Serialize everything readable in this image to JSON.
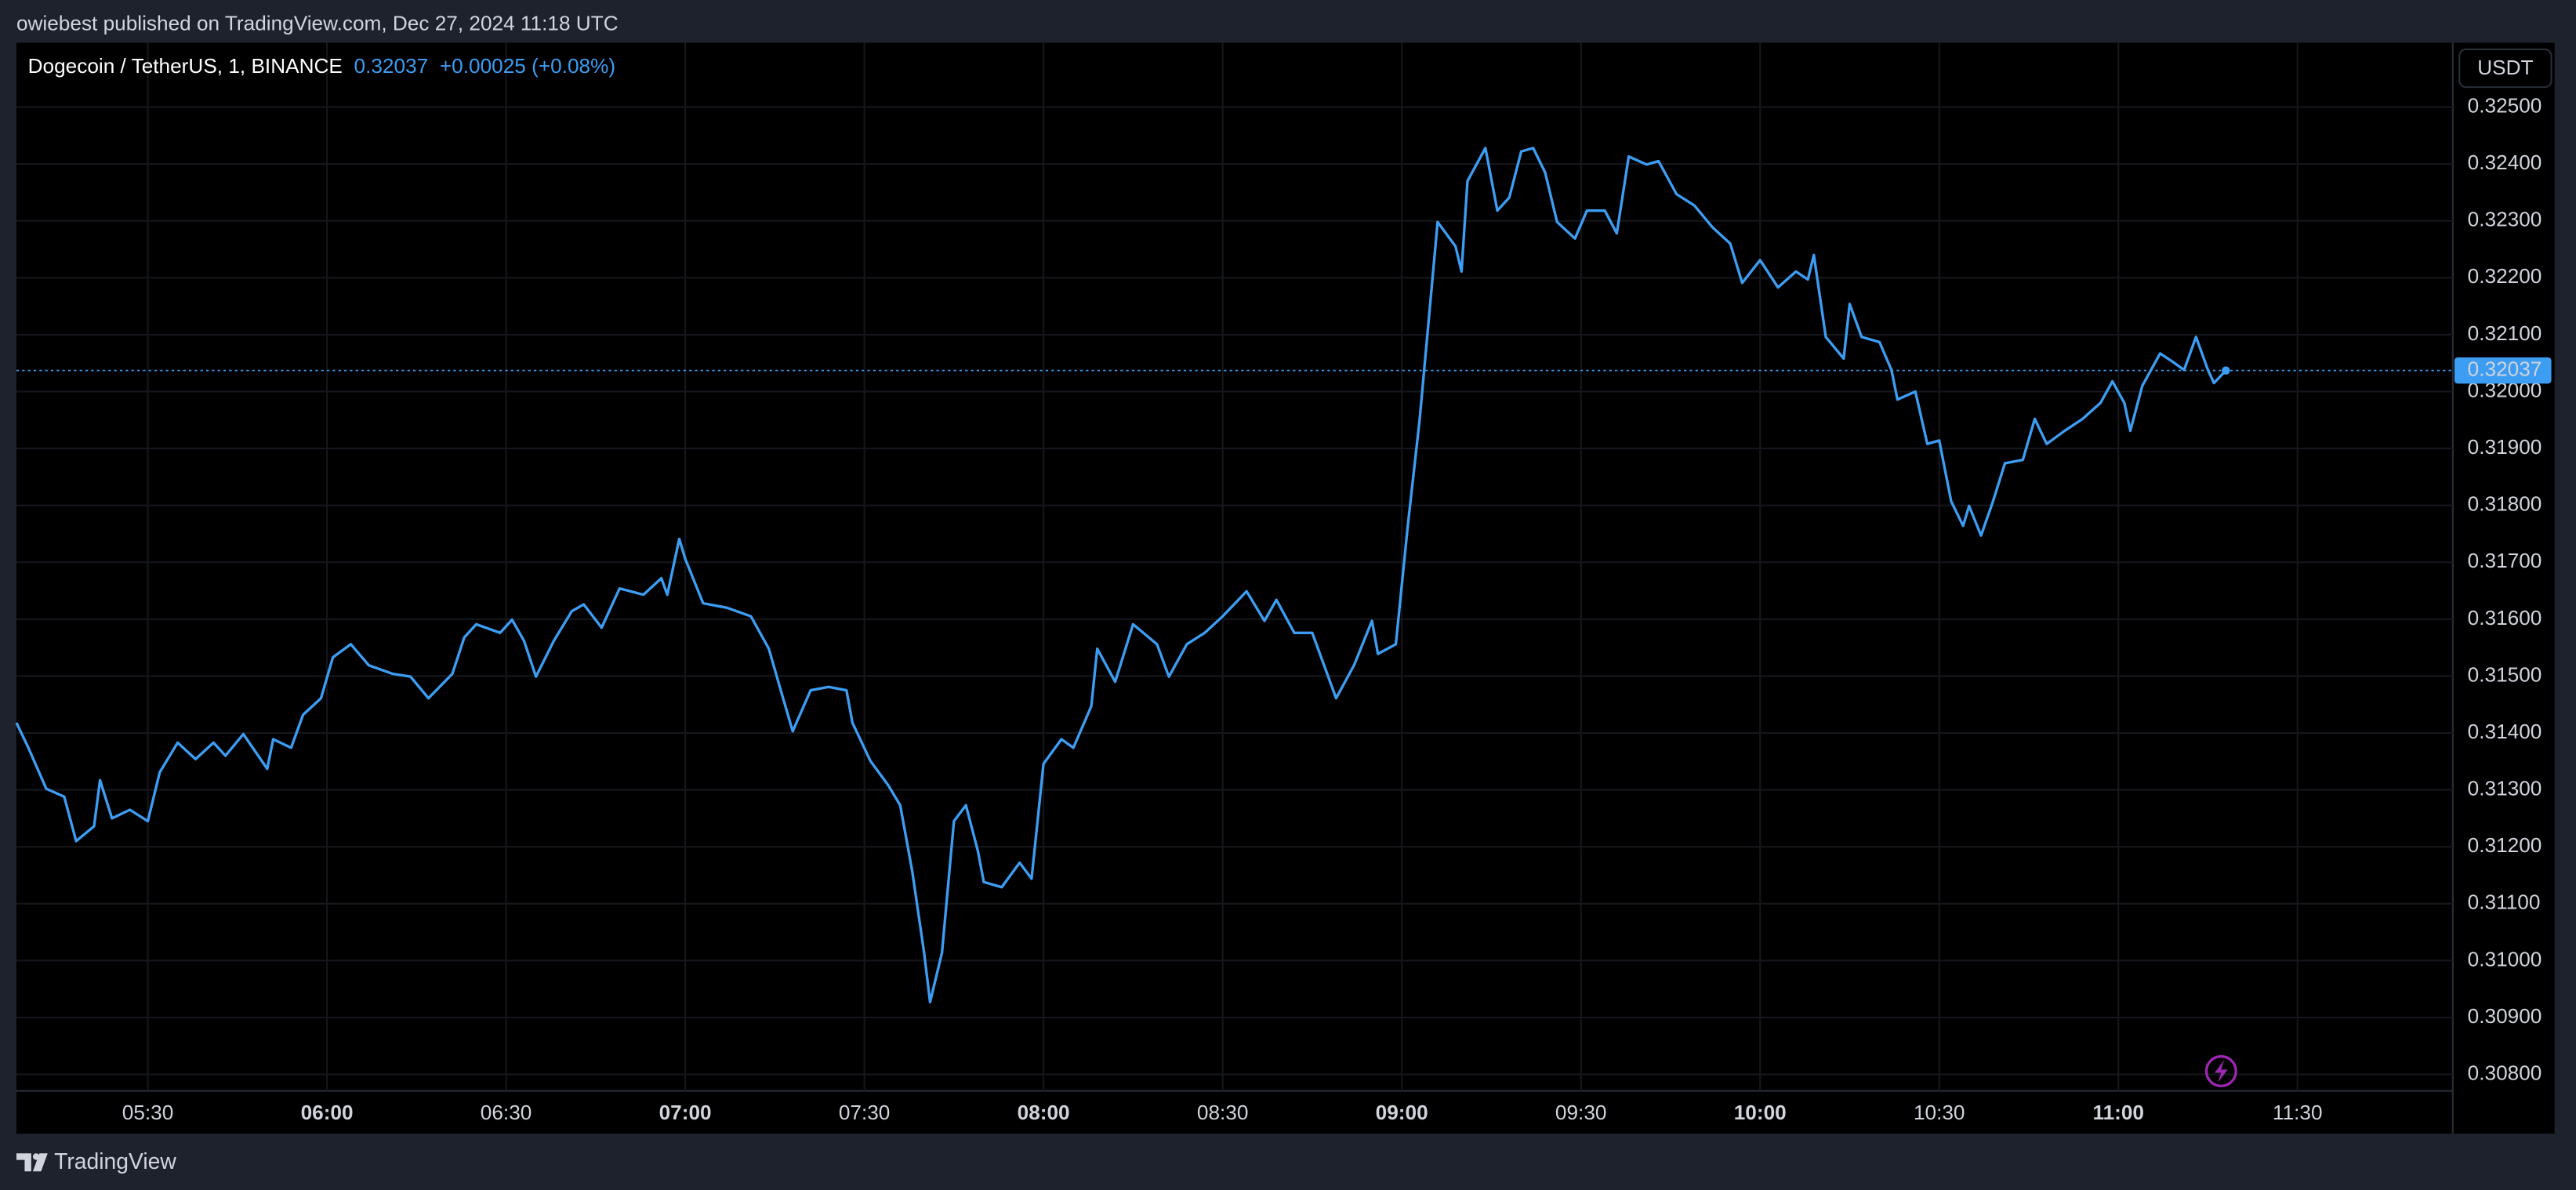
{
  "chart_data": {
    "type": "line",
    "published": "owiebest published on TradingView.com, Dec 27, 2024 11:18 UTC",
    "title": "Dogecoin / TetherUS, 1, BINANCE",
    "last_price": 0.32037,
    "change": "+0.00025 (+0.08%)",
    "currency": "USDT",
    "brand": "TradingView",
    "color": "#3d9df3",
    "grid": true,
    "x": [
      "05:08",
      "05:10",
      "05:13",
      "05:16",
      "05:18",
      "05:21",
      "05:22",
      "05:24",
      "05:27",
      "05:30",
      "05:32",
      "05:35",
      "05:38",
      "05:41",
      "05:43",
      "05:46",
      "05:50",
      "05:51",
      "05:54",
      "05:56",
      "05:59",
      "06:01",
      "06:04",
      "06:07",
      "06:11",
      "06:14",
      "06:17",
      "06:21",
      "06:23",
      "06:25",
      "06:29",
      "06:31",
      "06:33",
      "06:35",
      "06:38",
      "06:41",
      "06:43",
      "06:46",
      "06:49",
      "06:53",
      "06:56",
      "06:57",
      "06:59",
      "07:00",
      "07:03",
      "07:07",
      "07:11",
      "07:14",
      "07:16",
      "07:18",
      "07:21",
      "07:24",
      "07:27",
      "07:28",
      "07:31",
      "07:34",
      "07:36",
      "07:38",
      "07:40",
      "07:41",
      "07:43",
      "07:45",
      "07:47",
      "07:49",
      "07:50",
      "07:53",
      "07:56",
      "07:58",
      "08:00",
      "08:03",
      "08:05",
      "08:08",
      "08:09",
      "08:12",
      "08:15",
      "08:19",
      "08:21",
      "08:24",
      "08:27",
      "08:30",
      "08:34",
      "08:37",
      "08:39",
      "08:42",
      "08:45",
      "08:49",
      "08:52",
      "08:55",
      "08:56",
      "08:59",
      "09:01",
      "09:03",
      "09:06",
      "09:09",
      "09:10",
      "09:11",
      "09:14",
      "09:16",
      "09:18",
      "09:20",
      "09:22",
      "09:24",
      "09:26",
      "09:29",
      "09:31",
      "09:34",
      "09:36",
      "09:38",
      "09:41",
      "09:43",
      "09:46",
      "09:49",
      "09:52",
      "09:55",
      "09:57",
      "10:00",
      "10:03",
      "10:06",
      "10:08",
      "10:09",
      "10:11",
      "10:14",
      "10:15",
      "10:17",
      "10:20",
      "10:22",
      "10:23",
      "10:26",
      "10:28",
      "10:30",
      "10:32",
      "10:34",
      "10:35",
      "10:37",
      "10:39",
      "10:41",
      "10:44",
      "10:46",
      "10:48",
      "10:51",
      "10:54",
      "10:57",
      "10:59",
      "11:01",
      "11:02",
      "11:04",
      "11:07",
      "11:09",
      "11:11",
      "11:13",
      "11:15",
      "11:16",
      "11:18"
    ],
    "values": [
      0.31418,
      0.31374,
      0.31302,
      0.31288,
      0.3121,
      0.31236,
      0.31317,
      0.3125,
      0.31265,
      0.31245,
      0.31331,
      0.31383,
      0.31354,
      0.31383,
      0.3136,
      0.31398,
      0.31337,
      0.31389,
      0.31374,
      0.31432,
      0.31461,
      0.31533,
      0.31556,
      0.31519,
      0.31504,
      0.31499,
      0.31461,
      0.31504,
      0.31568,
      0.31591,
      0.31576,
      0.31599,
      0.31562,
      0.31499,
      0.31562,
      0.31614,
      0.31626,
      0.31585,
      0.31654,
      0.31643,
      0.31672,
      0.31643,
      0.31741,
      0.31706,
      0.31628,
      0.3162,
      0.31605,
      0.31548,
      0.31475,
      0.31403,
      0.31475,
      0.31481,
      0.31475,
      0.31418,
      0.31351,
      0.31308,
      0.31273,
      0.31158,
      0.31014,
      0.30927,
      0.31014,
      0.31245,
      0.31273,
      0.31193,
      0.31138,
      0.31129,
      0.31172,
      0.31144,
      0.31346,
      0.31389,
      0.31374,
      0.31447,
      0.31548,
      0.3149,
      0.31591,
      0.31556,
      0.31499,
      0.31556,
      0.31576,
      0.31605,
      0.31649,
      0.31597,
      0.31634,
      0.31576,
      0.31576,
      0.31461,
      0.31519,
      0.31597,
      0.31539,
      0.31556,
      0.31764,
      0.31952,
      0.32298,
      0.32255,
      0.32211,
      0.3237,
      0.32428,
      0.32318,
      0.32341,
      0.32422,
      0.32428,
      0.32385,
      0.32298,
      0.32269,
      0.32318,
      0.32318,
      0.32278,
      0.32413,
      0.32399,
      0.32405,
      0.32347,
      0.32327,
      0.32289,
      0.3226,
      0.32191,
      0.32231,
      0.32183,
      0.32211,
      0.32197,
      0.3224,
      0.32096,
      0.32058,
      0.32154,
      0.32096,
      0.32087,
      0.32038,
      0.31986,
      0.32,
      0.31908,
      0.31914,
      0.31807,
      0.31764,
      0.31799,
      0.31747,
      0.31807,
      0.31874,
      0.3188,
      0.31952,
      0.31908,
      0.31931,
      0.31952,
      0.3198,
      0.32018,
      0.3198,
      0.31931,
      0.3201,
      0.32067,
      0.32053,
      0.32038,
      0.32096,
      0.32038,
      0.32015,
      0.32037
    ],
    "xlim": [
      "05:08",
      "11:56"
    ],
    "xticks": [
      "05:30",
      "06:00",
      "06:30",
      "07:00",
      "07:30",
      "08:00",
      "08:30",
      "09:00",
      "09:30",
      "10:00",
      "10:30",
      "11:00",
      "11:30"
    ],
    "ylim": [
      0.30771,
      0.32613
    ],
    "yticks": [
      {
        "value": 0.308,
        "label": "0.30800"
      },
      {
        "value": 0.309,
        "label": "0.30900"
      },
      {
        "value": 0.31,
        "label": "0.31000"
      },
      {
        "value": 0.311,
        "label": "0.31100"
      },
      {
        "value": 0.312,
        "label": "0.31200"
      },
      {
        "value": 0.313,
        "label": "0.31300"
      },
      {
        "value": 0.314,
        "label": "0.31400"
      },
      {
        "value": 0.315,
        "label": "0.31500"
      },
      {
        "value": 0.316,
        "label": "0.31600"
      },
      {
        "value": 0.317,
        "label": "0.31700"
      },
      {
        "value": 0.318,
        "label": "0.31800"
      },
      {
        "value": 0.319,
        "label": "0.31900"
      },
      {
        "value": 0.32,
        "label": "0.32000"
      },
      {
        "value": 0.321,
        "label": "0.32100"
      },
      {
        "value": 0.322,
        "label": "0.32200"
      },
      {
        "value": 0.323,
        "label": "0.32300"
      },
      {
        "value": 0.324,
        "label": "0.32400"
      },
      {
        "value": 0.325,
        "label": "0.32500"
      }
    ]
  }
}
